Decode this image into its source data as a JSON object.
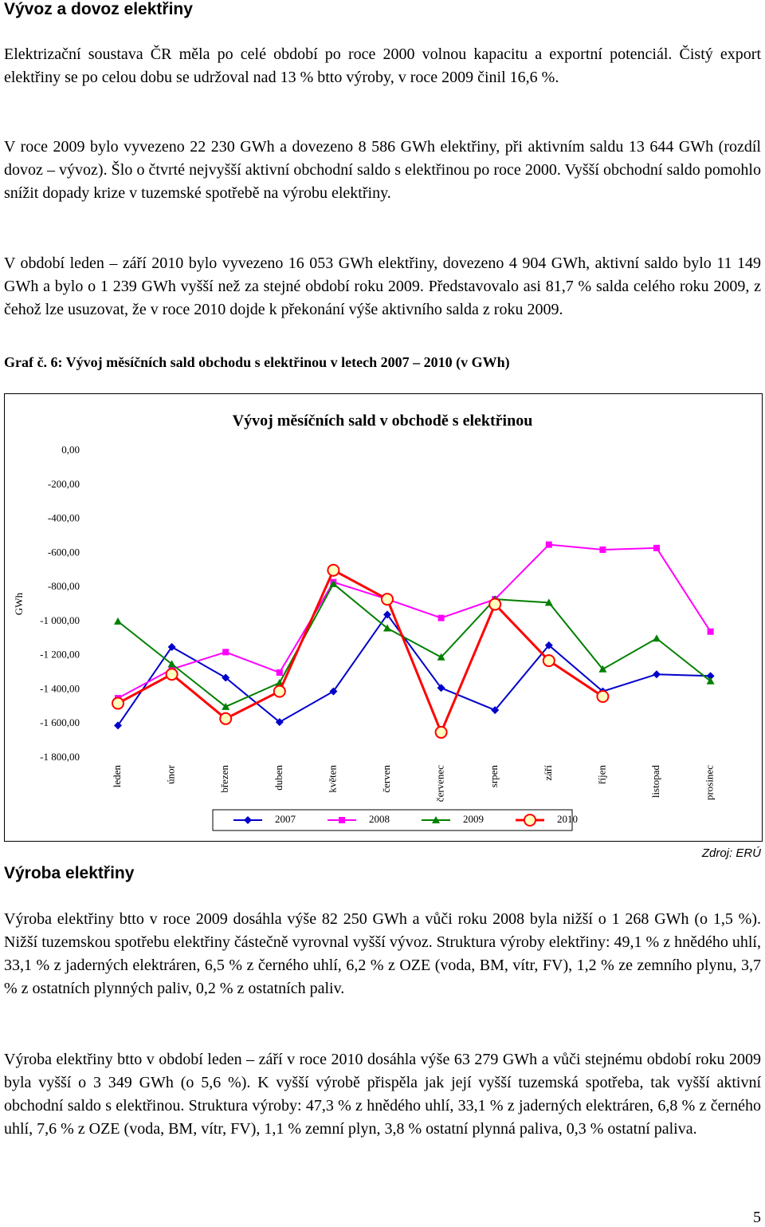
{
  "heading": "Vývoz a dovoz elektřiny",
  "paragraphs": [
    "Elektrizační soustava ČR měla po celé období po roce 2000 volnou kapacitu a exportní potenciál. Čistý export elektřiny se po celou dobu se udržoval nad 13 % btto výroby, v roce 2009 činil 16,6 %.",
    "V roce 2009 bylo vyvezeno 22 230 GWh a dovezeno 8 586 GWh elektřiny, při aktivním saldu 13 644 GWh (rozdíl dovoz – vývoz). Šlo o čtvrté nejvyšší aktivní obchodní saldo s elektřinou po roce 2000. Vyšší obchodní saldo pomohlo snížit dopady krize v tuzemské spotřebě na výrobu elektřiny.",
    "V období leden – září 2010 bylo vyvezeno 16 053 GWh elektřiny, dovezeno 4 904 GWh, aktivní saldo bylo 11 149 GWh a bylo o 1 239 GWh vyšší než za stejné období roku 2009. Představovalo asi 81,7 % salda celého roku 2009, z čehož lze usuzovat, že v roce 2010 dojde k překonání výše aktivního salda z roku 2009."
  ],
  "caption": "Graf č. 6: Vývoj měsíčních sald obchodu s elektřinou v letech 2007 – 2010 (v GWh)",
  "chart_data": {
    "type": "line",
    "title": "Vývoj měsíčních sald v obchodě s elektřinou",
    "y_label": "GWh",
    "categories": [
      "leden",
      "únor",
      "březen",
      "duben",
      "květen",
      "červen",
      "červenec",
      "srpen",
      "září",
      "říjen",
      "listopad",
      "prosinec"
    ],
    "series": [
      {
        "name": "2007",
        "color": "#0000cc",
        "values": [
          -1610,
          -1150,
          -1330,
          -1590,
          -1410,
          -960,
          -1390,
          -1520,
          -1140,
          -1410,
          -1310,
          -1320
        ]
      },
      {
        "name": "2008",
        "color": "#ff00ff",
        "values": [
          -1450,
          -1280,
          -1180,
          -1300,
          -770,
          -870,
          -980,
          -870,
          -550,
          -580,
          -570,
          -1060
        ]
      },
      {
        "name": "2009",
        "color": "#008000",
        "values": [
          -1000,
          -1250,
          -1500,
          -1360,
          -780,
          -1040,
          -1210,
          -870,
          -890,
          -1280,
          -1100,
          -1350
        ]
      },
      {
        "name": "2010",
        "color": "#ff0000",
        "values": [
          -1480,
          -1310,
          -1570,
          -1410,
          -700,
          -870,
          -1650,
          -900,
          -1230,
          -1440,
          null,
          null
        ]
      }
    ],
    "ylim": [
      -1800,
      0
    ],
    "yticks": [
      {
        "value": 0,
        "label": "0,00"
      },
      {
        "value": -200,
        "label": "-200,00"
      },
      {
        "value": -400,
        "label": "-400,00"
      },
      {
        "value": -600,
        "label": "-600,00"
      },
      {
        "value": -800,
        "label": "-800,00"
      },
      {
        "value": -1000,
        "label": "-1 000,00"
      },
      {
        "value": -1200,
        "label": "-1 200,00"
      },
      {
        "value": -1400,
        "label": "-1 400,00"
      },
      {
        "value": -1600,
        "label": "-1 600,00"
      },
      {
        "value": -1800,
        "label": "-1 800,00"
      }
    ],
    "legend": "bottom"
  },
  "source": "Zdroj: ERÚ",
  "heading2": "Výroba elektřiny",
  "paragraphs2": [
    "Výroba elektřiny btto v roce 2009 dosáhla výše 82 250 GWh a vůči roku 2008 byla nižší o 1 268 GWh (o 1,5 %). Nižší tuzemskou spotřebu elektřiny částečně vyrovnal vyšší vývoz. Struktura výroby elektřiny: 49,1 % z hnědého uhlí, 33,1 % z jaderných elektráren, 6,5 % z černého uhlí, 6,2 % z OZE (voda, BM, vítr, FV), 1,2 % ze zemního plynu, 3,7 % z ostatních plynných paliv, 0,2 % z ostatních paliv.",
    "Výroba elektřiny btto v období leden – září v roce 2010 dosáhla výše 63 279 GWh a vůči stejnému období roku 2009 byla vyšší o 3 349 GWh (o 5,6 %). K vyšší výrobě přispěla jak její vyšší tuzemská spotřeba, tak vyšší aktivní obchodní saldo s elektřinou. Struktura výroby: 47,3 % z hnědého uhlí, 33,1 % z jaderných elektráren, 6,8 % z černého uhlí, 7,6 % z OZE (voda, BM, vítr, FV), 1,1 % zemní plyn, 3,8 % ostatní plynná paliva, 0,3 % ostatní paliva."
  ],
  "page_number": "5"
}
